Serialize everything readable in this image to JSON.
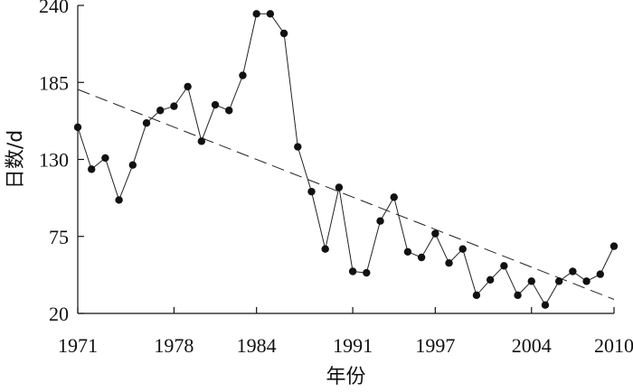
{
  "chart_data": {
    "type": "line",
    "title": "",
    "xlabel": "年份",
    "ylabel": "日数/d",
    "xlim": [
      1971,
      2010
    ],
    "ylim": [
      20,
      240
    ],
    "x_ticks": [
      {
        "value": 1971,
        "label": "1971"
      },
      {
        "value": 1978,
        "label": "1978"
      },
      {
        "value": 1984,
        "label": "1984"
      },
      {
        "value": 1991,
        "label": "1991"
      },
      {
        "value": 1997,
        "label": "1997"
      },
      {
        "value": 2004,
        "label": "2004"
      },
      {
        "value": 2010,
        "label": "2010"
      }
    ],
    "y_ticks": [
      {
        "value": 20,
        "label": "20"
      },
      {
        "value": 75,
        "label": "75"
      },
      {
        "value": 130,
        "label": "130"
      },
      {
        "value": 185,
        "label": "185"
      },
      {
        "value": 240,
        "label": "240"
      }
    ],
    "grid": false,
    "legend": "none",
    "series": [
      {
        "style": "solid-line-with-dots",
        "color": "#111111",
        "x": [
          1971,
          1972,
          1973,
          1974,
          1975,
          1976,
          1977,
          1978,
          1979,
          1980,
          1981,
          1982,
          1983,
          1984,
          1985,
          1986,
          1987,
          1988,
          1989,
          1990,
          1991,
          1992,
          1993,
          1994,
          1995,
          1996,
          1997,
          1998,
          1999,
          2000,
          2001,
          2002,
          2003,
          2004,
          2005,
          2006,
          2007,
          2008,
          2009,
          2010
        ],
        "values": [
          153,
          123,
          131,
          101,
          126,
          156,
          165,
          168,
          182,
          143,
          169,
          165,
          190,
          234,
          234,
          220,
          139,
          107,
          66,
          110,
          50,
          49,
          86,
          103,
          64,
          60,
          77,
          56,
          66,
          33,
          44,
          54,
          33,
          43,
          26,
          43,
          50,
          43,
          48,
          68
        ]
      },
      {
        "style": "dashed-trend",
        "color": "#222222",
        "x": [
          1971,
          2010
        ],
        "values": [
          180,
          30
        ]
      }
    ]
  }
}
